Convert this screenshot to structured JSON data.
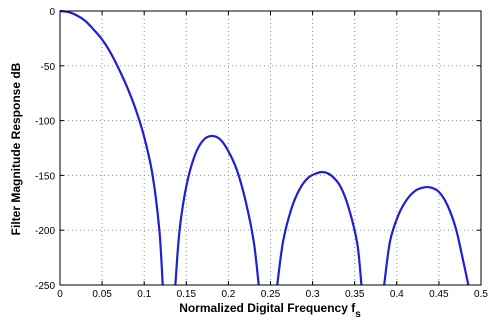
{
  "chart_data": {
    "type": "line",
    "xlabel": "Normalized Digital Frequency",
    "xlabel_symbol": "f",
    "xlabel_subscript": "s",
    "ylabel": "Filter Magnitude Response dB",
    "xlim": [
      0,
      0.5
    ],
    "ylim": [
      -250,
      0
    ],
    "x_ticks": [
      0,
      0.05,
      0.1,
      0.15,
      0.2,
      0.25,
      0.3,
      0.35,
      0.4,
      0.45,
      0.5
    ],
    "x_tick_labels": [
      "0",
      "0.05",
      "0.1",
      "0.15",
      "0.2",
      "0.25",
      "0.3",
      "0.35",
      "0.4",
      "0.45",
      "0.5"
    ],
    "y_ticks": [
      0,
      -50,
      -100,
      -150,
      -200,
      -250
    ],
    "y_tick_labels": [
      "0",
      "-50",
      "-100",
      "-150",
      "-200",
      "-250"
    ],
    "grid": true,
    "line_color": "#1f1fd6",
    "series": [
      {
        "name": "",
        "points": [
          [
            0.0,
            0.0
          ],
          [
            0.01,
            -1.0
          ],
          [
            0.02,
            -4.0
          ],
          [
            0.03,
            -9.0
          ],
          [
            0.04,
            -17.0
          ],
          [
            0.05,
            -26.0
          ],
          [
            0.06,
            -38.0
          ],
          [
            0.07,
            -53.0
          ],
          [
            0.08,
            -70.0
          ],
          [
            0.09,
            -90.0
          ],
          [
            0.1,
            -115.0
          ],
          [
            0.11,
            -150.0
          ],
          [
            0.118,
            -200.0
          ],
          [
            0.122,
            -250.0
          ]
        ]
      },
      {
        "name": "",
        "points": [
          [
            0.137,
            -250.0
          ],
          [
            0.142,
            -200.0
          ],
          [
            0.15,
            -160.0
          ],
          [
            0.16,
            -132.0
          ],
          [
            0.17,
            -118.0
          ],
          [
            0.18,
            -114.0
          ],
          [
            0.19,
            -117.0
          ],
          [
            0.2,
            -128.0
          ],
          [
            0.21,
            -145.0
          ],
          [
            0.22,
            -172.0
          ],
          [
            0.23,
            -210.0
          ],
          [
            0.236,
            -250.0
          ]
        ]
      },
      {
        "name": "",
        "points": [
          [
            0.258,
            -250.0
          ],
          [
            0.265,
            -210.0
          ],
          [
            0.275,
            -180.0
          ],
          [
            0.285,
            -162.0
          ],
          [
            0.295,
            -152.0
          ],
          [
            0.305,
            -148.0
          ],
          [
            0.313,
            -147.0
          ],
          [
            0.322,
            -150.0
          ],
          [
            0.333,
            -160.0
          ],
          [
            0.343,
            -180.0
          ],
          [
            0.353,
            -212.0
          ],
          [
            0.358,
            -250.0
          ]
        ]
      },
      {
        "name": "",
        "points": [
          [
            0.385,
            -250.0
          ],
          [
            0.392,
            -210.0
          ],
          [
            0.402,
            -186.0
          ],
          [
            0.412,
            -172.0
          ],
          [
            0.422,
            -164.0
          ],
          [
            0.432,
            -161.0
          ],
          [
            0.44,
            -161.0
          ],
          [
            0.45,
            -165.0
          ],
          [
            0.46,
            -177.0
          ],
          [
            0.47,
            -198.0
          ],
          [
            0.478,
            -225.0
          ],
          [
            0.485,
            -250.0
          ]
        ]
      }
    ]
  }
}
